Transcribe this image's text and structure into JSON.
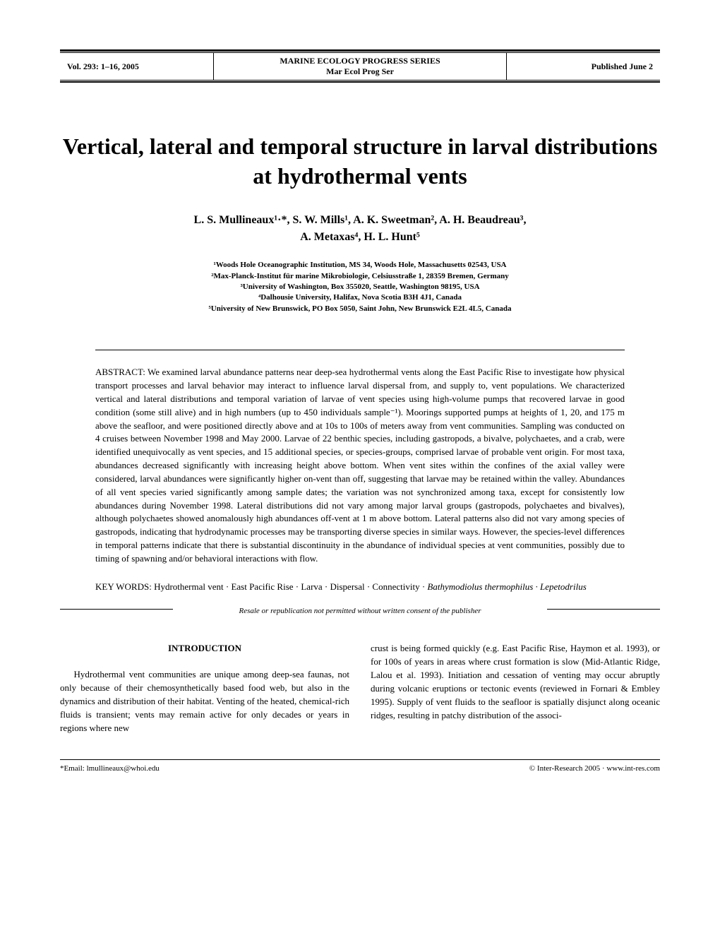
{
  "header": {
    "volume": "Vol. 293: 1–16, 2005",
    "journal_title": "MARINE ECOLOGY PROGRESS SERIES",
    "journal_abbrev": "Mar Ecol Prog Ser",
    "published": "Published June 2"
  },
  "title": "Vertical, lateral and temporal structure in larval distributions at hydrothermal vents",
  "authors_line1": "L. S. Mullineaux¹·*, S. W. Mills¹, A. K. Sweetman², A. H. Beaudreau³,",
  "authors_line2": "A. Metaxas⁴, H. L. Hunt⁵",
  "affiliations": {
    "a1": "¹Woods Hole Oceanographic Institution, MS 34, Woods Hole, Massachusetts 02543, USA",
    "a2": "²Max-Planck-Institut für marine Mikrobiologie, Celsiusstraße 1, 28359 Bremen, Germany",
    "a3": "³University of Washington, Box 355020, Seattle, Washington 98195, USA",
    "a4": "⁴Dalhousie University, Halifax, Nova Scotia B3H 4J1, Canada",
    "a5": "⁵University of New Brunswick, PO Box 5050, Saint John, New Brunswick E2L 4L5, Canada"
  },
  "abstract": "ABSTRACT: We examined larval abundance patterns near deep-sea hydrothermal vents along the East Pacific Rise to investigate how physical transport processes and larval behavior may interact to influence larval dispersal from, and supply to, vent populations. We characterized vertical and lateral distributions and temporal variation of larvae of vent species using high-volume pumps that recovered larvae in good condition (some still alive) and in high numbers (up to 450 individuals sample⁻¹). Moorings supported pumps at heights of 1, 20, and 175 m above the seafloor, and were positioned directly above and at 10s to 100s of meters away from vent communities. Sampling was conducted on 4 cruises between November 1998 and May 2000. Larvae of 22 benthic species, including gastropods, a bivalve, polychaetes, and a crab, were identified unequivocally as vent species, and 15 additional species, or species-groups, comprised larvae of probable vent origin. For most taxa, abundances decreased significantly with increasing height above bottom. When vent sites within the confines of the axial valley were considered, larval abundances were significantly higher on-vent than off, suggesting that larvae may be retained within the valley. Abundances of all vent species varied significantly among sample dates; the variation was not synchronized among taxa, except for consistently low abundances during November 1998. Lateral distributions did not vary among major larval groups (gastropods, polychaetes and bivalves), although polychaetes showed anomalously high abundances off-vent at 1 m above bottom. Lateral patterns also did not vary among species of gastropods, indicating that hydrodynamic processes may be transporting diverse species in similar ways. However, the species-level differences in temporal patterns indicate that there is substantial discontinuity in the abundance of individual species at vent communities, possibly due to timing of spawning and/or behavioral interactions with flow.",
  "keywords": "KEY WORDS:   Hydrothermal vent · East Pacific Rise · Larva · Dispersal · Connectivity · Bathymodiolus thermophilus · Lepetodrilus",
  "keywords_prefix": "KEY WORDS:",
  "keywords_text": "   Hydrothermal vent · East Pacific Rise · Larva · Dispersal · Connectivity · ",
  "keywords_italic": "Bathymodiolus thermophilus · Lepetodrilus",
  "resale": "Resale or republication not permitted without written consent of the publisher",
  "body": {
    "section_heading": "INTRODUCTION",
    "col1": "Hydrothermal vent communities are unique among deep-sea faunas, not only because of their chemosynthetically based food web, but also in the dynamics and distribution of their habitat. Venting of the heated, chemical-rich fluids is transient; vents may remain active for only decades or years in regions where new",
    "col2": "crust is being formed quickly (e.g. East Pacific Rise, Haymon et al. 1993), or for 100s of years in areas where crust formation is slow (Mid-Atlantic Ridge, Lalou et al. 1993). Initiation and cessation of venting may occur abruptly during volcanic eruptions or tectonic events (reviewed in Fornari & Embley 1995). Supply of vent fluids to the seafloor is spatially disjunct along oceanic ridges, resulting in patchy distribution of the associ-"
  },
  "footer": {
    "email": "*Email: lmullineaux@whoi.edu",
    "copyright": "© Inter-Research 2005 · www.int-res.com"
  }
}
